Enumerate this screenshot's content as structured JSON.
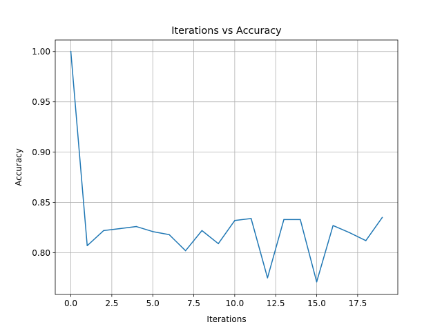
{
  "chart_data": {
    "type": "line",
    "title": "Iterations vs Accuracy",
    "xlabel": "Iterations",
    "ylabel": "Accuracy",
    "xlim": [
      -0.95,
      19.95
    ],
    "ylim": [
      0.7585,
      1.0115
    ],
    "grid": true,
    "x_ticks": [
      0.0,
      2.5,
      5.0,
      7.5,
      10.0,
      12.5,
      15.0,
      17.5
    ],
    "x_tick_labels": [
      "0.0",
      "2.5",
      "5.0",
      "7.5",
      "10.0",
      "12.5",
      "15.0",
      "17.5"
    ],
    "y_ticks": [
      0.8,
      0.85,
      0.9,
      0.95,
      1.0
    ],
    "y_tick_labels": [
      "0.80",
      "0.85",
      "0.90",
      "0.95",
      "1.00"
    ],
    "series": [
      {
        "color": "#1f77b4",
        "x": [
          0,
          1,
          2,
          3,
          4,
          5,
          6,
          7,
          8,
          9,
          10,
          11,
          12,
          13,
          14,
          15,
          16,
          17,
          18,
          19
        ],
        "y": [
          1.0,
          0.807,
          0.822,
          0.824,
          0.826,
          0.821,
          0.818,
          0.802,
          0.822,
          0.809,
          0.832,
          0.834,
          0.775,
          0.833,
          0.833,
          0.771,
          0.827,
          0.82,
          0.812,
          0.835
        ]
      }
    ]
  }
}
